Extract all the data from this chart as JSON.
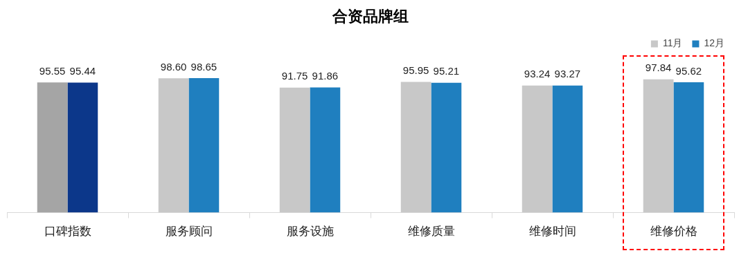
{
  "chart_data": {
    "type": "bar",
    "title": "合资品牌组",
    "categories": [
      "口碑指数",
      "服务顾问",
      "服务设施",
      "维修质量",
      "维修时间",
      "维修价格"
    ],
    "series": [
      {
        "name": "11月",
        "color": "#c8c8c8",
        "colors": [
          "#a5a5a5",
          "#c8c8c8",
          "#c8c8c8",
          "#c8c8c8",
          "#c8c8c8",
          "#c8c8c8"
        ],
        "values": [
          95.55,
          98.6,
          91.75,
          95.95,
          93.24,
          97.84
        ],
        "value_labels": [
          "95.55",
          "98.60",
          "91.75",
          "95.95",
          "93.24",
          "97.84"
        ]
      },
      {
        "name": "12月",
        "color": "#1f7fbf",
        "colors": [
          "#0c378a",
          "#1f7fbf",
          "#1f7fbf",
          "#1f7fbf",
          "#1f7fbf",
          "#1f7fbf"
        ],
        "values": [
          95.44,
          98.65,
          91.86,
          95.21,
          93.27,
          95.62
        ],
        "value_labels": [
          "95.44",
          "98.65",
          "91.86",
          "95.21",
          "93.27",
          "95.62"
        ]
      }
    ],
    "grid": false,
    "legend": "top right"
  }
}
